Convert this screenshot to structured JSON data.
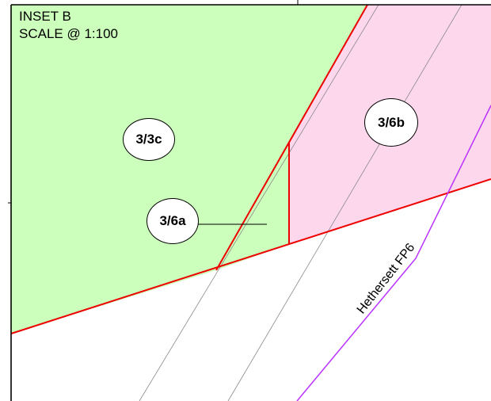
{
  "inset": {
    "title_line1": "INSET B",
    "title_line2": "SCALE @ 1:100"
  },
  "plots": {
    "p_3_3c": "3/3c",
    "p_3_6a": "3/6a",
    "p_3_6b": "3/6b"
  },
  "footpath": {
    "label": "Hethersett FP6"
  },
  "colors": {
    "green_area": "#ccffbb",
    "pink_area": "#fdd7ec",
    "boundary_red": "#ee0000",
    "footpath_purple": "#bb33ff",
    "guide_grey": "#8a8a8a",
    "frame_black": "#000000"
  }
}
